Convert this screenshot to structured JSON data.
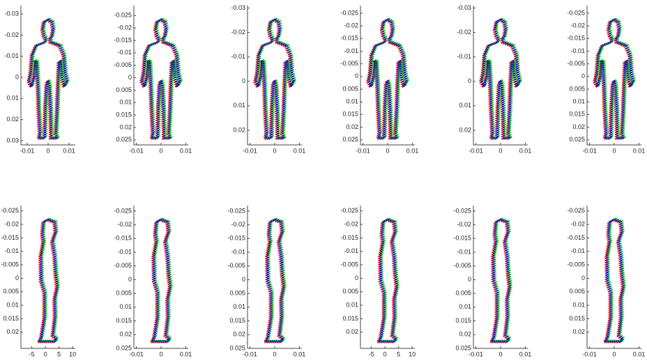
{
  "colors": [
    "#e01010",
    "#10d010",
    "#1010c8"
  ],
  "chart_data": [
    {
      "type": "scatter",
      "view": "front",
      "xlim": [
        -0.013,
        0.013
      ],
      "ylim": [
        -0.034,
        0.032
      ],
      "xticks": [
        -0.01,
        0,
        0.01
      ],
      "yticks": [
        -0.03,
        -0.02,
        -0.01,
        0,
        0.01,
        0.02,
        0.03
      ]
    },
    {
      "type": "scatter",
      "view": "front",
      "xlim": [
        -0.011,
        0.011
      ],
      "ylim": [
        -0.029,
        0.027
      ],
      "xticks": [
        -0.01,
        0,
        0.01
      ],
      "yticks": [
        -0.025,
        -0.02,
        -0.015,
        -0.01,
        -0.005,
        0,
        0.005,
        0.01,
        0.015,
        0.02,
        0.025
      ]
    },
    {
      "type": "scatter",
      "view": "front",
      "xlim": [
        -0.011,
        0.011
      ],
      "ylim": [
        -0.031,
        0.026
      ],
      "xticks": [
        -0.01,
        0,
        0.01
      ],
      "yticks": [
        -0.03,
        -0.02,
        -0.01,
        0,
        0.01,
        0.02
      ]
    },
    {
      "type": "scatter",
      "view": "front",
      "xlim": [
        -0.011,
        0.011
      ],
      "ylim": [
        -0.028,
        0.027
      ],
      "xticks": [
        -0.01,
        0,
        0.01
      ],
      "yticks": [
        -0.025,
        -0.02,
        -0.015,
        -0.01,
        -0.005,
        0,
        0.005,
        0.01,
        0.015,
        0.02,
        0.025
      ]
    },
    {
      "type": "scatter",
      "view": "front",
      "xlim": [
        -0.011,
        0.011
      ],
      "ylim": [
        -0.031,
        0.026
      ],
      "xticks": [
        -0.01,
        0,
        0.01
      ],
      "yticks": [
        -0.03,
        -0.02,
        -0.01,
        0,
        0.01,
        0.02
      ]
    },
    {
      "type": "scatter",
      "view": "front",
      "xlim": [
        -0.011,
        0.011
      ],
      "ylim": [
        -0.028,
        0.027
      ],
      "xticks": [
        -0.01,
        0,
        0.01
      ],
      "yticks": [
        -0.025,
        -0.02,
        -0.015,
        -0.01,
        -0.005,
        0,
        0.005,
        0.01,
        0.015,
        0.02,
        0.025
      ]
    },
    {
      "type": "scatter",
      "view": "side",
      "xlim": [
        -9,
        11
      ],
      "ylim": [
        -0.027,
        0.026
      ],
      "xticks": [
        -5,
        0,
        5,
        10
      ],
      "yticks": [
        -0.025,
        -0.02,
        -0.015,
        -0.01,
        -0.005,
        0,
        0.005,
        0.01,
        0.015,
        0.02
      ]
    },
    {
      "type": "scatter",
      "view": "side",
      "xlim": [
        -0.011,
        0.011
      ],
      "ylim": [
        -0.027,
        0.025
      ],
      "xticks": [
        -0.01,
        0,
        0.01
      ],
      "yticks": [
        -0.025,
        -0.02,
        -0.015,
        -0.01,
        -0.005,
        0,
        0.005,
        0.01,
        0.015,
        0.02,
        0.025
      ]
    },
    {
      "type": "scatter",
      "view": "side",
      "xlim": [
        -0.011,
        0.011
      ],
      "ylim": [
        -0.027,
        0.025
      ],
      "xticks": [
        -0.01,
        0,
        0.01
      ],
      "yticks": [
        -0.025,
        -0.02,
        -0.015,
        -0.01,
        -0.005,
        0,
        0.005,
        0.01,
        0.015,
        0.02,
        0.025
      ]
    },
    {
      "type": "scatter",
      "view": "side",
      "xlim": [
        -9,
        11
      ],
      "ylim": [
        -0.027,
        0.026
      ],
      "xticks": [
        -5,
        0,
        5,
        10
      ],
      "yticks": [
        -0.025,
        -0.02,
        -0.015,
        -0.01,
        -0.005,
        0,
        0.005,
        0.01,
        0.015,
        0.02
      ]
    },
    {
      "type": "scatter",
      "view": "side",
      "xlim": [
        -0.011,
        0.011
      ],
      "ylim": [
        -0.027,
        0.025
      ],
      "xticks": [
        -0.01,
        0,
        0.01
      ],
      "yticks": [
        -0.025,
        -0.02,
        -0.015,
        -0.01,
        -0.005,
        0,
        0.005,
        0.01,
        0.015,
        0.02,
        0.025
      ]
    },
    {
      "type": "scatter",
      "view": "side",
      "xlim": [
        -0.011,
        0.011
      ],
      "ylim": [
        -0.027,
        0.026
      ],
      "xticks": [
        -0.01,
        0,
        0.01
      ],
      "yticks": [
        -0.025,
        -0.02,
        -0.015,
        -0.01,
        -0.005,
        0,
        0.005,
        0.01,
        0.015,
        0.02
      ]
    }
  ]
}
